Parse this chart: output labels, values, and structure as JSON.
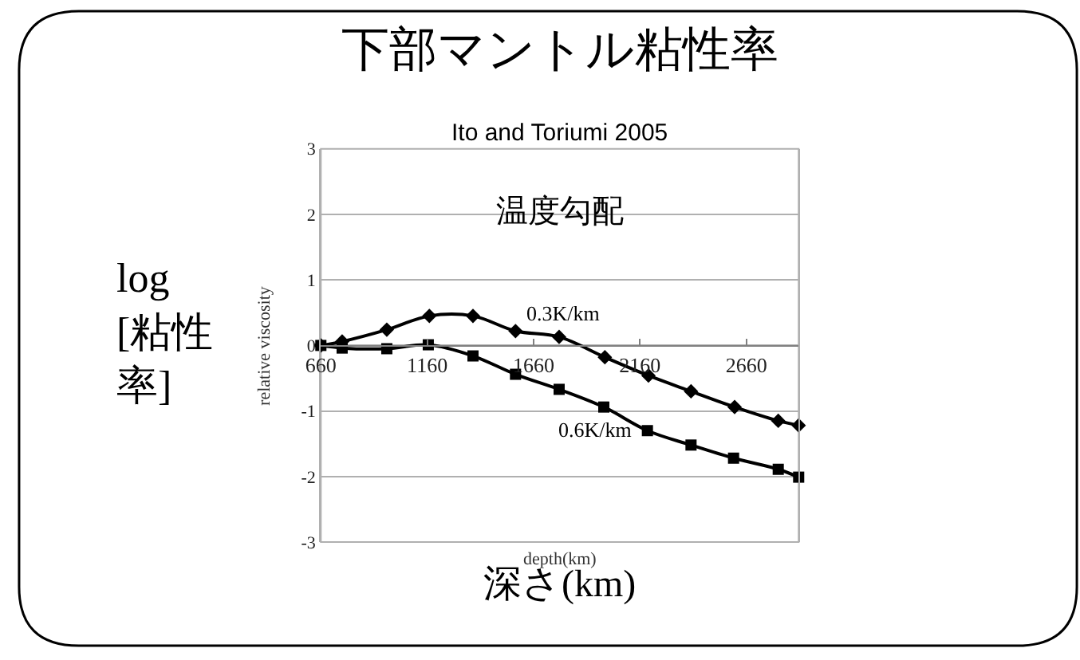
{
  "chart_data": {
    "type": "line",
    "title": "下部マントル粘性率",
    "subtitle": "Ito and Toriumi 2005",
    "xlabel": "depth(km)",
    "ylabel": "relative viscosity",
    "annotations": [
      "温度勾配",
      "log [粘性率]",
      "深さ(km)",
      "0.3K/km",
      "0.6K/km"
    ],
    "series": [
      {
        "color": "#000000",
        "marker": "diamond",
        "x": [
          660,
          760,
          970,
          1170,
          1375,
          1575,
          1780,
          1995,
          2200,
          2400,
          2605,
          2810,
          2906
        ],
        "values": [
          0,
          0.06,
          0.24,
          0.45,
          0.45,
          0.22,
          0.13,
          -0.18,
          -0.46,
          -0.7,
          -0.94,
          -1.15,
          -1.22
        ]
      },
      {
        "color": "#000000",
        "marker": "square",
        "x": [
          660,
          760,
          970,
          1165,
          1375,
          1575,
          1780,
          1990,
          2195,
          2400,
          2600,
          2810,
          2906
        ],
        "values": [
          0,
          -0.04,
          -0.05,
          0.01,
          -0.16,
          -0.44,
          -0.67,
          -0.94,
          -1.3,
          -1.52,
          -1.72,
          -1.89,
          -2.01
        ]
      }
    ],
    "xlim": [
      660,
      2906
    ],
    "xticks": [
      660,
      1160,
      1660,
      2160,
      2660
    ],
    "ylim": [
      -3,
      3
    ],
    "yticks": [
      -3,
      -2,
      -1,
      0,
      1,
      2,
      3
    ],
    "grid": "y"
  }
}
